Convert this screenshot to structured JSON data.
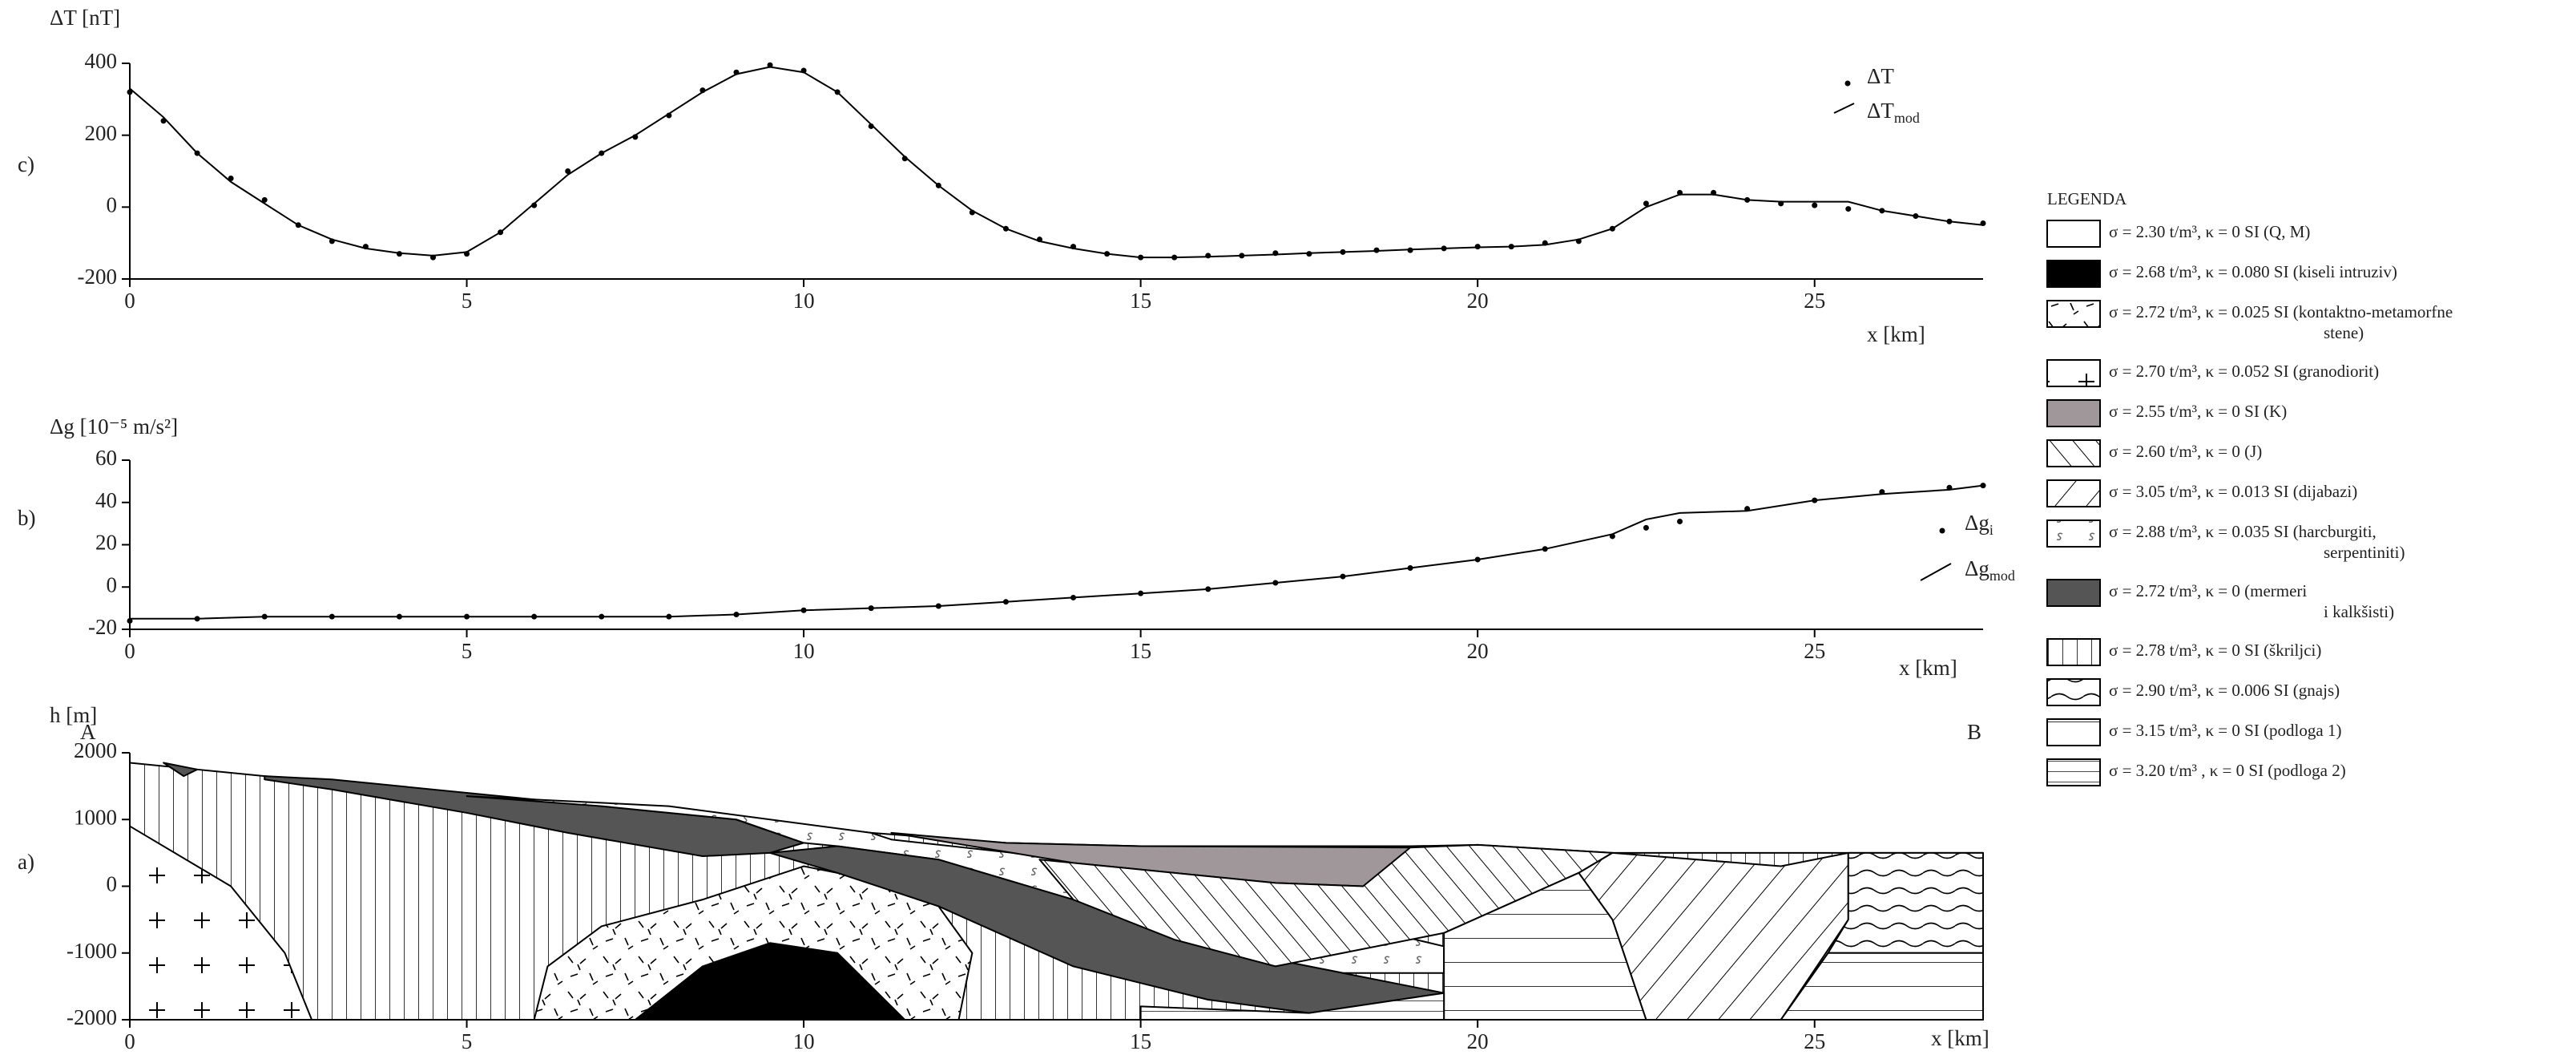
{
  "chart_data": [
    {
      "type": "line",
      "panel": "c)",
      "ylabel": "ΔT [nT]",
      "xlabel": "x [km]",
      "xlim": [
        0,
        27.5
      ],
      "ylim": [
        -200,
        400
      ],
      "xticks": [
        0,
        5,
        10,
        15,
        20,
        25
      ],
      "yticks": [
        -200,
        0,
        200,
        400
      ],
      "x": [
        0,
        0.5,
        1,
        1.5,
        2,
        2.5,
        3,
        3.5,
        4,
        4.5,
        5,
        5.5,
        6,
        6.5,
        7,
        7.5,
        8,
        8.5,
        9,
        9.5,
        10,
        10.5,
        11,
        11.5,
        12,
        12.5,
        13,
        13.5,
        14,
        14.5,
        15,
        15.5,
        16,
        16.5,
        17,
        17.5,
        18,
        18.5,
        19,
        19.5,
        20,
        20.5,
        21,
        21.5,
        22,
        22.5,
        23,
        23.5,
        24,
        24.5,
        25,
        25.5,
        26,
        26.5,
        27,
        27.5
      ],
      "series": [
        {
          "name": "ΔT",
          "marker": "dot",
          "color": "#000",
          "values": [
            320,
            240,
            150,
            80,
            20,
            -50,
            -95,
            -110,
            -130,
            -140,
            -130,
            -70,
            5,
            100,
            150,
            195,
            255,
            325,
            375,
            395,
            380,
            320,
            225,
            135,
            60,
            -15,
            -60,
            -90,
            -110,
            -130,
            -140,
            -140,
            -135,
            -135,
            -128,
            -130,
            -125,
            -120,
            -120,
            -115,
            -110,
            -110,
            -100,
            -95,
            -60,
            10,
            40,
            40,
            20,
            10,
            5,
            -5,
            -10,
            -25,
            -40,
            -45
          ]
        },
        {
          "name": "ΔT",
          "sub": "mod",
          "marker": "line",
          "color": "#000",
          "values": [
            330,
            250,
            150,
            70,
            10,
            -50,
            -90,
            -115,
            -128,
            -135,
            -125,
            -70,
            10,
            90,
            150,
            200,
            260,
            320,
            370,
            390,
            375,
            320,
            230,
            140,
            60,
            -10,
            -60,
            -95,
            -115,
            -130,
            -140,
            -140,
            -138,
            -135,
            -132,
            -128,
            -125,
            -122,
            -118,
            -115,
            -112,
            -110,
            -105,
            -90,
            -60,
            0,
            35,
            35,
            20,
            15,
            15,
            15,
            -10,
            -25,
            -40,
            -50
          ]
        }
      ]
    },
    {
      "type": "line",
      "panel": "b)",
      "ylabel": "Δg [10⁻⁵ m/s²]",
      "xlabel": "x [km]",
      "xlim": [
        0,
        27.5
      ],
      "ylim": [
        -20,
        60
      ],
      "xticks": [
        0,
        5,
        10,
        15,
        20,
        25
      ],
      "yticks": [
        -20,
        0,
        20,
        40,
        60
      ],
      "x": [
        0,
        1,
        2,
        3,
        4,
        5,
        6,
        7,
        8,
        9,
        10,
        11,
        12,
        13,
        14,
        15,
        16,
        17,
        18,
        19,
        20,
        21,
        22,
        22.5,
        23,
        24,
        25,
        26,
        27,
        27.5
      ],
      "series": [
        {
          "name": "Δg",
          "sub": "i",
          "marker": "dot",
          "color": "#000",
          "values": [
            -16,
            -15,
            -14,
            -14,
            -14,
            -14,
            -14,
            -14,
            -14,
            -13,
            -11,
            -10,
            -9,
            -7,
            -5,
            -3,
            -1,
            2,
            5,
            9,
            13,
            18,
            24,
            28,
            31,
            37,
            41,
            45,
            47,
            48
          ]
        },
        {
          "name": "Δg",
          "sub": "mod",
          "marker": "line",
          "color": "#000",
          "values": [
            -15,
            -15,
            -14,
            -14,
            -14,
            -14,
            -14,
            -14,
            -14,
            -13,
            -11,
            -10,
            -9,
            -7,
            -5,
            -3,
            -1,
            2,
            5,
            9,
            13,
            18,
            25,
            32,
            35,
            36,
            41,
            44,
            46,
            48
          ]
        }
      ]
    },
    {
      "type": "section",
      "panel": "a)",
      "ylabel": "h [m]",
      "xlabel": "x [km]",
      "ends": [
        "A",
        "B"
      ],
      "xlim": [
        0,
        27.5
      ],
      "ylim": [
        -2000,
        2000
      ],
      "xticks": [
        0,
        5,
        10,
        15,
        20,
        25
      ],
      "yticks": [
        -2000,
        -1000,
        0,
        1000,
        2000
      ],
      "legend": {
        "title": "LEGENDA",
        "entries": [
          {
            "lines": [
              "σ = 2.30 t/m³, κ = 0 SI (Q, M)"
            ]
          },
          {
            "lines": [
              "σ = 2.68 t/m³, κ = 0.080 SI (kiseli intruziv)"
            ]
          },
          {
            "lines": [
              "σ = 2.72 t/m³, κ = 0.025 SI (kontaktno-metamorfne",
              "stene)"
            ]
          },
          {
            "lines": [
              "σ = 2.70 t/m³, κ = 0.052 SI (granodiorit)"
            ]
          },
          {
            "lines": [
              "σ = 2.55 t/m³, κ = 0 SI (K)"
            ]
          },
          {
            "lines": [
              "σ = 2.60 t/m³, κ = 0 (J)"
            ]
          },
          {
            "lines": [
              "σ = 3.05 t/m³, κ = 0.013 SI (dijabazi)"
            ]
          },
          {
            "lines": [
              "σ = 2.88 t/m³, κ = 0.035 SI (harcburgiti,",
              "serpentiniti)"
            ]
          },
          {
            "lines": [
              "σ = 2.72 t/m³, κ = 0 (mermeri",
              "i kalkšisti)"
            ]
          },
          {
            "lines": [
              "σ = 2.78 t/m³, κ = 0 SI (škriljci)"
            ]
          },
          {
            "lines": [
              "σ = 2.90 t/m³, κ = 0.006 SI (gnajs)"
            ]
          },
          {
            "lines": [
              "σ = 3.15 t/m³, κ = 0 SI (podloga 1)"
            ]
          },
          {
            "lines": [
              "σ = 3.20 t/m³ , κ = 0 SI (podloga 2)"
            ]
          }
        ]
      }
    }
  ]
}
